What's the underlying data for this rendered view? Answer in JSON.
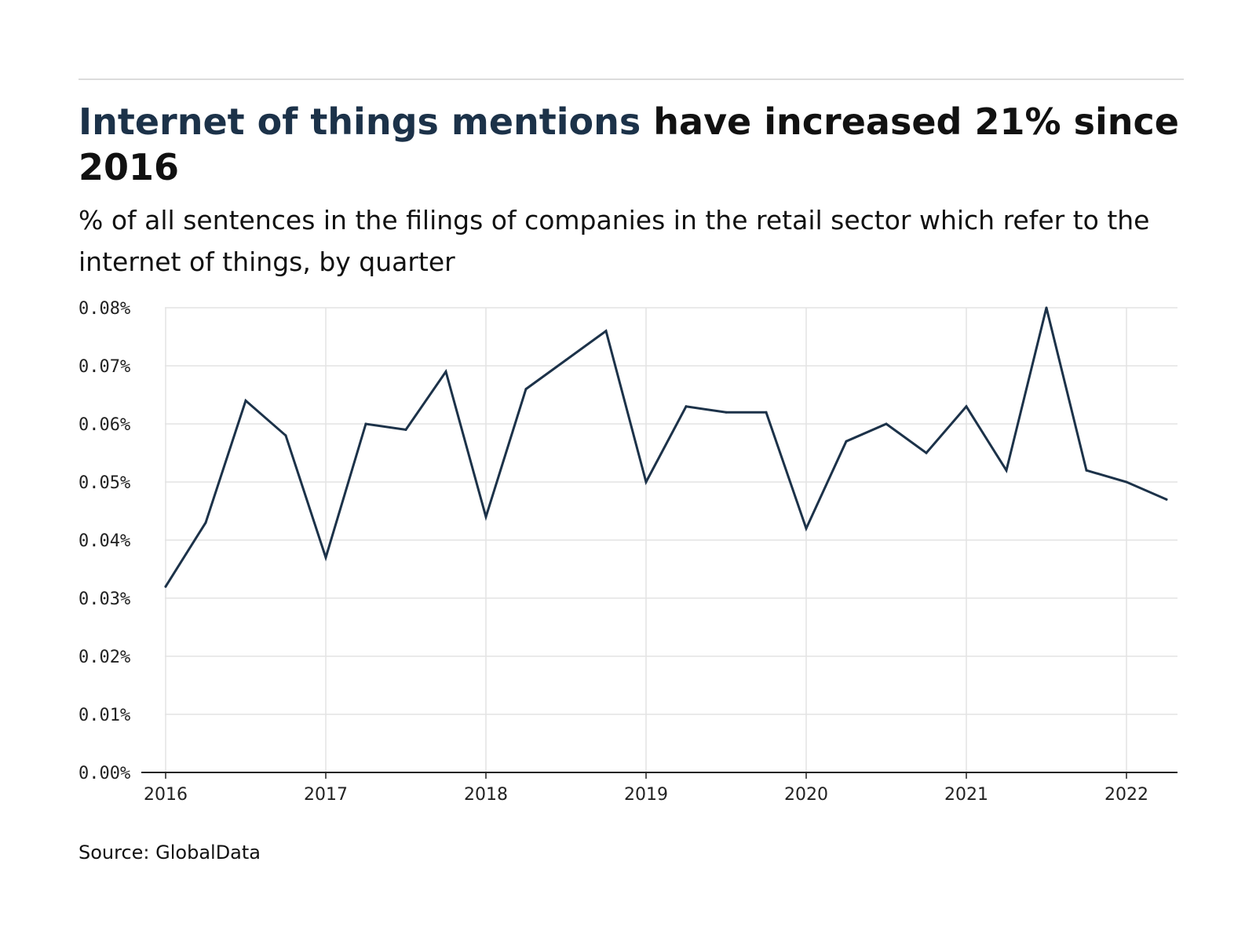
{
  "headline": {
    "accent": "Internet of things mentions",
    "rest": " have increased 21% since 2016"
  },
  "subtitle": "% of all sentences in the filings of companies in the retail sector which refer to the internet of things, by quarter",
  "source": "Source: GlobalData",
  "colors": {
    "line": "#1c3249",
    "accent_text": "#1c3249",
    "grid": "#e3e3e3",
    "axis": "#222222"
  },
  "chart_data": {
    "type": "line",
    "title": "Internet of things mentions have increased 21% since 2016",
    "subtitle": "% of all sentences in the filings of companies in the retail sector which refer to the internet of things, by quarter",
    "xlabel": "",
    "ylabel": "",
    "x": [
      "2016 Q1",
      "2016 Q2",
      "2016 Q3",
      "2016 Q4",
      "2017 Q1",
      "2017 Q2",
      "2017 Q3",
      "2017 Q4",
      "2018 Q1",
      "2018 Q2",
      "2018 Q3",
      "2018 Q4",
      "2019 Q1",
      "2019 Q2",
      "2019 Q3",
      "2019 Q4",
      "2020 Q1",
      "2020 Q2",
      "2020 Q3",
      "2020 Q4",
      "2021 Q1",
      "2021 Q2",
      "2021 Q3",
      "2021 Q4",
      "2022 Q1",
      "2022 Q2"
    ],
    "series": [
      {
        "values": [
          0.032,
          0.043,
          0.064,
          0.058,
          0.037,
          0.06,
          0.059,
          0.069,
          0.044,
          0.066,
          0.071,
          0.076,
          0.05,
          0.063,
          0.062,
          0.062,
          0.042,
          0.057,
          0.06,
          0.055,
          0.063,
          0.052,
          0.08,
          0.052,
          0.05,
          0.047
        ]
      }
    ],
    "ylim": [
      0,
      0.08
    ],
    "y_ticks": [
      "0.00%",
      "0.01%",
      "0.02%",
      "0.03%",
      "0.04%",
      "0.05%",
      "0.06%",
      "0.07%",
      "0.08%"
    ],
    "x_ticks": [
      "2016",
      "2017",
      "2018",
      "2019",
      "2020",
      "2021",
      "2022"
    ],
    "grid": true,
    "legend": "none"
  }
}
